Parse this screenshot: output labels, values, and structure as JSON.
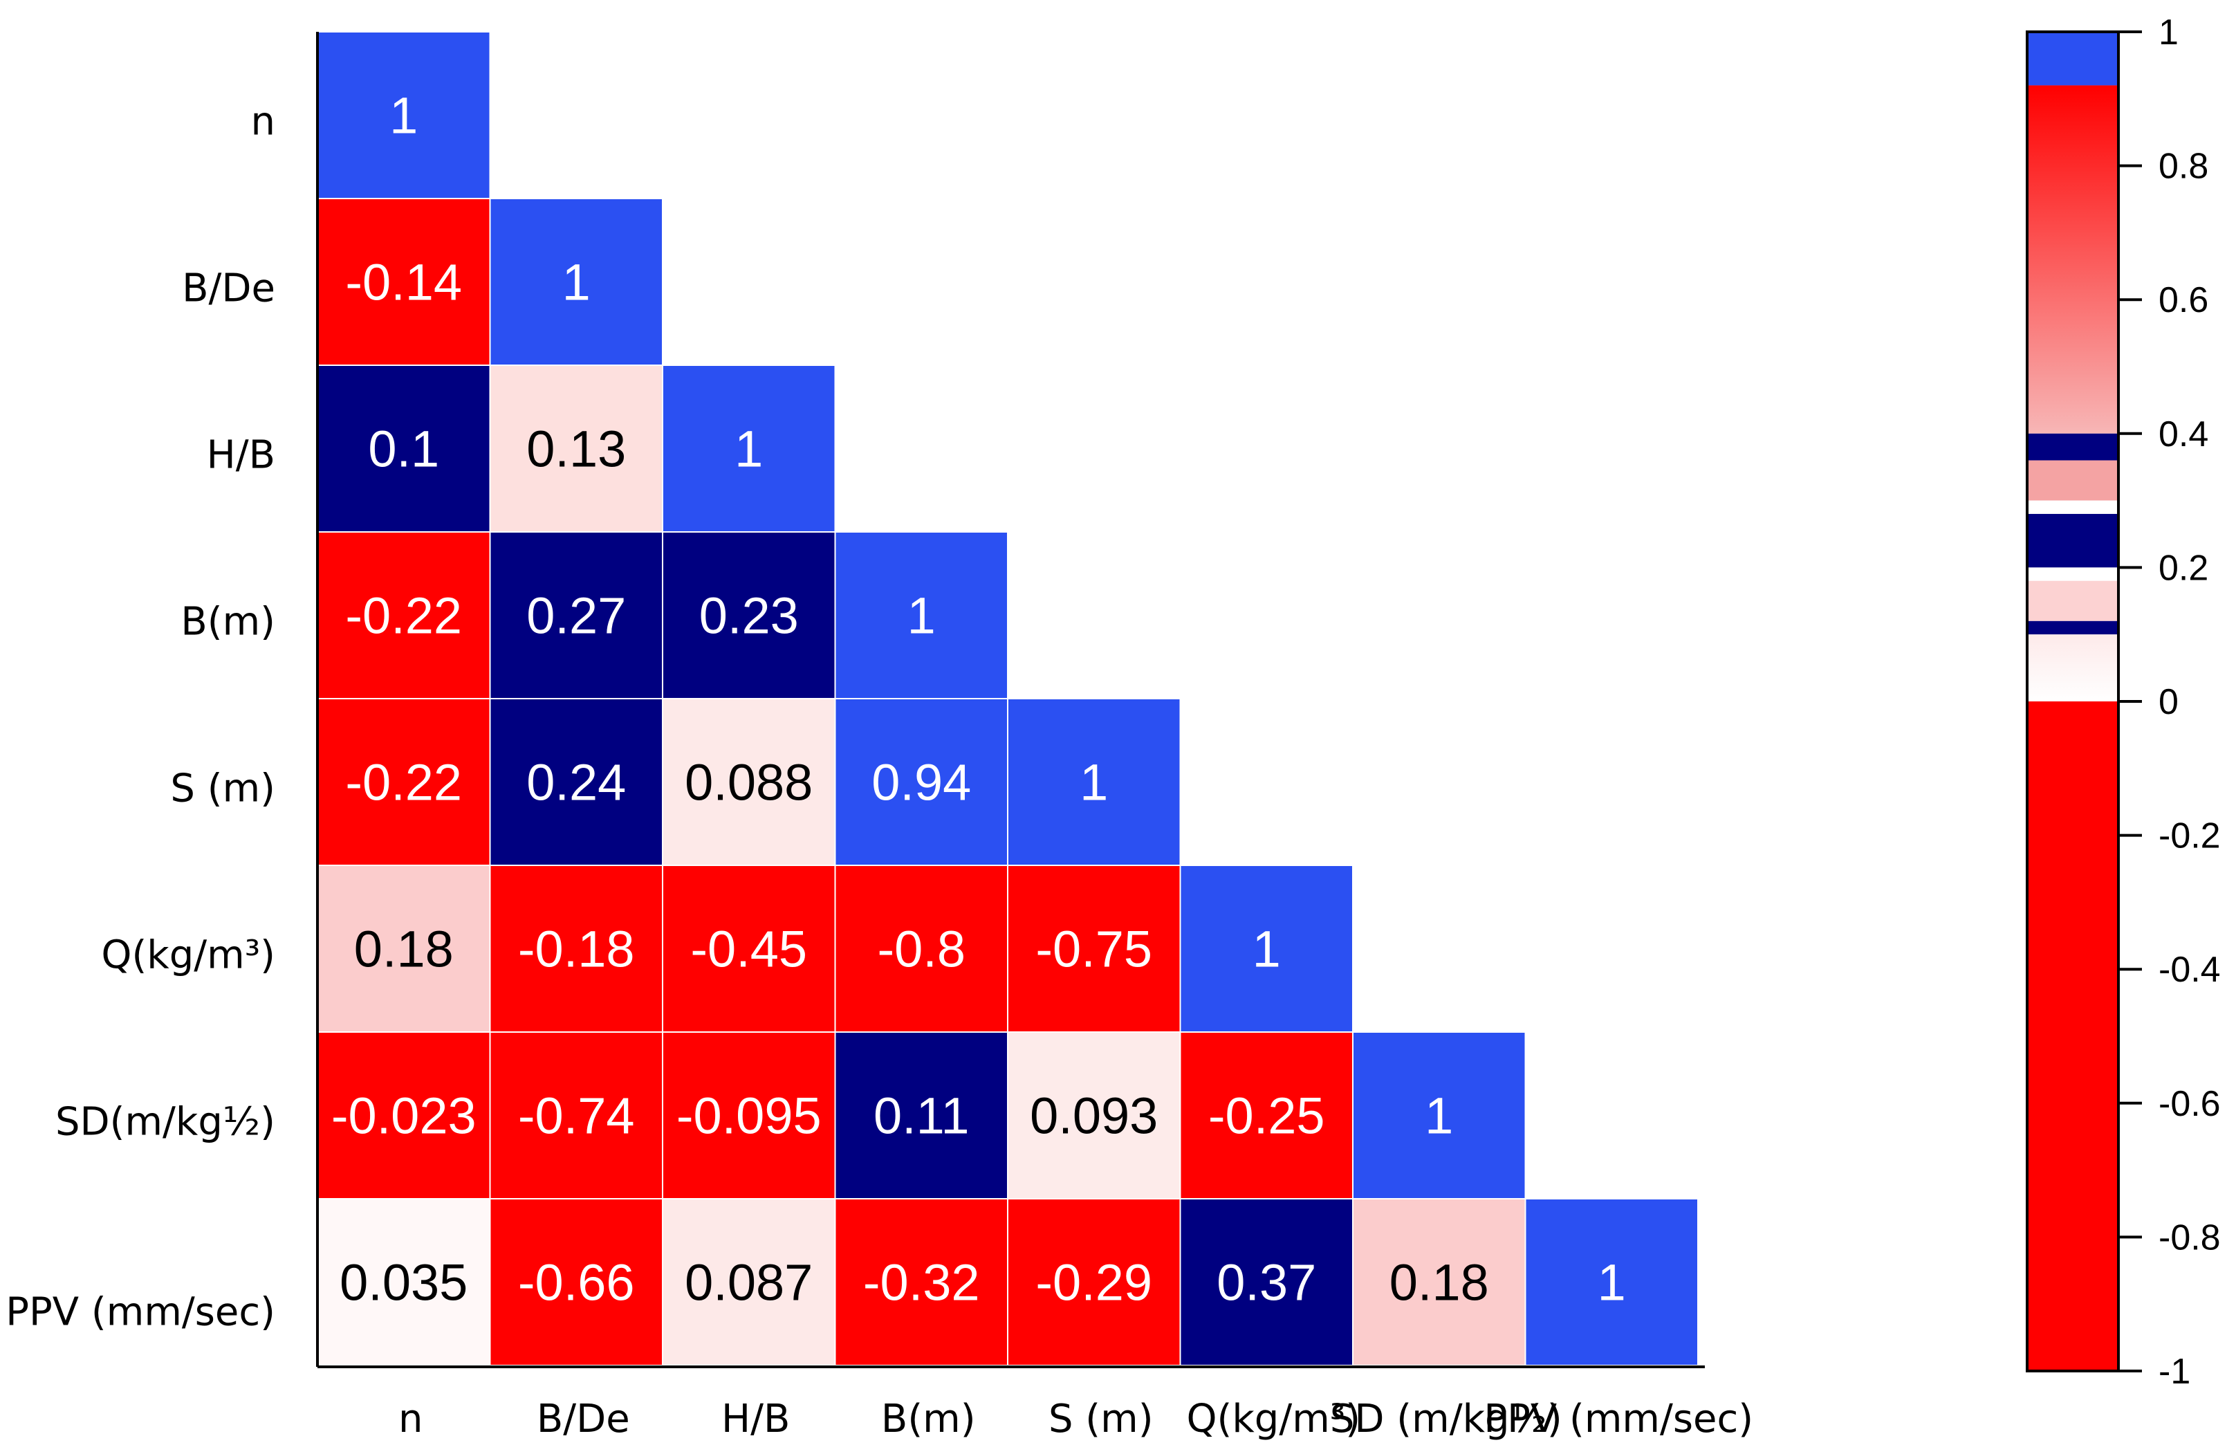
{
  "chart_data": {
    "type": "heatmap",
    "title": "",
    "matrix_shape": "lower-triangular",
    "row_labels": [
      "n",
      "B/De",
      "H/B",
      "B(m)",
      "S (m)",
      "Q(kg/m³)",
      "SD(m/kg½)",
      "PPV (mm/sec)"
    ],
    "column_labels": [
      "n",
      "B/De",
      "H/B",
      "B(m)",
      "S (m)",
      "Q(kg/m³)",
      "SD (m/kg½)",
      "PPV (mm/sec)"
    ],
    "cells": [
      {
        "row": 0,
        "col": 0,
        "label": "1",
        "color": "#2b50f2",
        "text_color": "#ffffff"
      },
      {
        "row": 1,
        "col": 0,
        "label": "-0.14",
        "color": "#ff0000",
        "text_color": "#ffffff"
      },
      {
        "row": 1,
        "col": 1,
        "label": "1",
        "color": "#2b50f2",
        "text_color": "#ffffff"
      },
      {
        "row": 2,
        "col": 0,
        "label": "0.1",
        "color": "#000080",
        "text_color": "#ffffff"
      },
      {
        "row": 2,
        "col": 1,
        "label": "0.13",
        "color": "#fde0de",
        "text_color": "#000000"
      },
      {
        "row": 2,
        "col": 2,
        "label": "1",
        "color": "#2b50f2",
        "text_color": "#ffffff"
      },
      {
        "row": 3,
        "col": 0,
        "label": "-0.22",
        "color": "#ff0000",
        "text_color": "#ffffff"
      },
      {
        "row": 3,
        "col": 1,
        "label": "0.27",
        "color": "#000080",
        "text_color": "#ffffff"
      },
      {
        "row": 3,
        "col": 2,
        "label": "0.23",
        "color": "#000080",
        "text_color": "#ffffff"
      },
      {
        "row": 3,
        "col": 3,
        "label": "1",
        "color": "#2b50f2",
        "text_color": "#ffffff"
      },
      {
        "row": 4,
        "col": 0,
        "label": "-0.22",
        "color": "#ff0000",
        "text_color": "#ffffff"
      },
      {
        "row": 4,
        "col": 1,
        "label": "0.24",
        "color": "#000080",
        "text_color": "#ffffff"
      },
      {
        "row": 4,
        "col": 2,
        "label": "0.088",
        "color": "#fde9e8",
        "text_color": "#000000"
      },
      {
        "row": 4,
        "col": 3,
        "label": "0.94",
        "color": "#2b50f2",
        "text_color": "#ffffff"
      },
      {
        "row": 4,
        "col": 4,
        "label": "1",
        "color": "#2b50f2",
        "text_color": "#ffffff"
      },
      {
        "row": 5,
        "col": 0,
        "label": "0.18",
        "color": "#fbcccc",
        "text_color": "#000000"
      },
      {
        "row": 5,
        "col": 1,
        "label": "-0.18",
        "color": "#ff0000",
        "text_color": "#ffffff"
      },
      {
        "row": 5,
        "col": 2,
        "label": "-0.45",
        "color": "#ff0000",
        "text_color": "#ffffff"
      },
      {
        "row": 5,
        "col": 3,
        "label": "-0.8",
        "color": "#ff0000",
        "text_color": "#ffffff"
      },
      {
        "row": 5,
        "col": 4,
        "label": "-0.75",
        "color": "#ff0000",
        "text_color": "#ffffff"
      },
      {
        "row": 5,
        "col": 5,
        "label": "1",
        "color": "#2b50f2",
        "text_color": "#ffffff"
      },
      {
        "row": 6,
        "col": 0,
        "label": "-0.023",
        "color": "#ff0000",
        "text_color": "#ffffff"
      },
      {
        "row": 6,
        "col": 1,
        "label": "-0.74",
        "color": "#ff0000",
        "text_color": "#ffffff"
      },
      {
        "row": 6,
        "col": 2,
        "label": "-0.095",
        "color": "#ff0000",
        "text_color": "#ffffff"
      },
      {
        "row": 6,
        "col": 3,
        "label": "0.11",
        "color": "#000080",
        "text_color": "#ffffff"
      },
      {
        "row": 6,
        "col": 4,
        "label": "0.093",
        "color": "#fdebea",
        "text_color": "#000000"
      },
      {
        "row": 6,
        "col": 5,
        "label": "-0.25",
        "color": "#ff0000",
        "text_color": "#ffffff"
      },
      {
        "row": 6,
        "col": 6,
        "label": "1",
        "color": "#2b50f2",
        "text_color": "#ffffff"
      },
      {
        "row": 7,
        "col": 0,
        "label": "0.035",
        "color": "#fff8f8",
        "text_color": "#000000"
      },
      {
        "row": 7,
        "col": 1,
        "label": "-0.66",
        "color": "#ff0000",
        "text_color": "#ffffff"
      },
      {
        "row": 7,
        "col": 2,
        "label": "0.087",
        "color": "#fde9e8",
        "text_color": "#000000"
      },
      {
        "row": 7,
        "col": 3,
        "label": "-0.32",
        "color": "#ff0000",
        "text_color": "#ffffff"
      },
      {
        "row": 7,
        "col": 4,
        "label": "-0.29",
        "color": "#ff0000",
        "text_color": "#ffffff"
      },
      {
        "row": 7,
        "col": 5,
        "label": "0.37",
        "color": "#000080",
        "text_color": "#ffffff"
      },
      {
        "row": 7,
        "col": 6,
        "label": "0.18",
        "color": "#fbcccc",
        "text_color": "#000000"
      },
      {
        "row": 7,
        "col": 7,
        "label": "1",
        "color": "#2b50f2",
        "text_color": "#ffffff"
      }
    ],
    "colorbar": {
      "range": [
        -1,
        1
      ],
      "ticks": [
        "1",
        "0.8",
        "0.6",
        "0.4",
        "0.2",
        "0",
        "-0.2",
        "-0.4",
        "-0.6",
        "-0.8",
        "-1"
      ],
      "tick_values": [
        1,
        0.8,
        0.6,
        0.4,
        0.2,
        0,
        -0.2,
        -0.4,
        -0.6,
        -0.8,
        -1
      ],
      "bands": [
        {
          "from": 0.92,
          "to": 1.0,
          "color": "#2b50f2"
        },
        {
          "from": 0.4,
          "to": 0.92,
          "color": "#ff0000",
          "gradient_to": "#f7b6b6"
        },
        {
          "from": 0.36,
          "to": 0.4,
          "color": "#000080"
        },
        {
          "from": 0.3,
          "to": 0.36,
          "color": "#f4a3a3"
        },
        {
          "from": 0.28,
          "to": 0.3,
          "color": "#ffffff"
        },
        {
          "from": 0.2,
          "to": 0.28,
          "color": "#000080"
        },
        {
          "from": 0.18,
          "to": 0.2,
          "color": "#ffffff"
        },
        {
          "from": 0.12,
          "to": 0.18,
          "color": "#fcd2d2"
        },
        {
          "from": 0.1,
          "to": 0.12,
          "color": "#000080"
        },
        {
          "from": 0.0,
          "to": 0.1,
          "color": "#ffffff",
          "gradient_to": "#fdeaea"
        },
        {
          "from": -1.0,
          "to": 0.0,
          "color": "#ff0000"
        }
      ],
      "legend_position": "right"
    }
  }
}
